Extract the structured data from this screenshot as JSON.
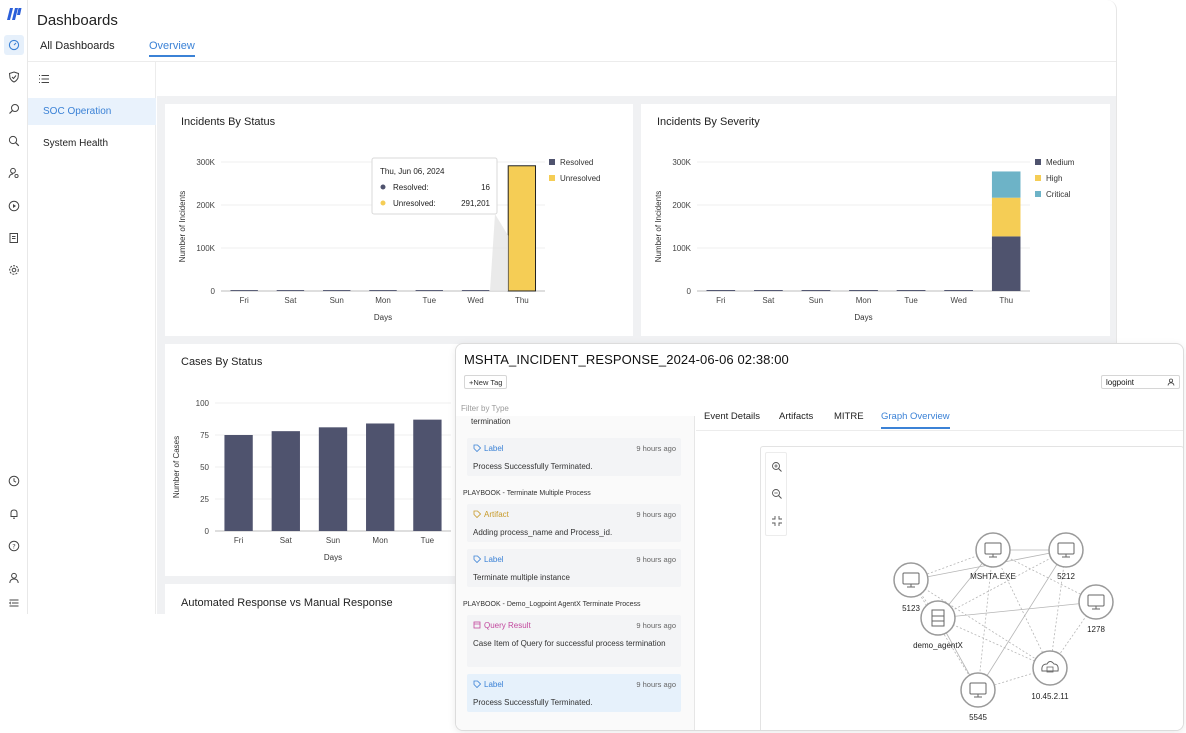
{
  "app": {
    "title": "Dashboards",
    "tabs": [
      "All Dashboards",
      "Overview"
    ]
  },
  "rail_icons": [
    "logo-icon",
    "dashboard-icon",
    "shield-check-icon",
    "investigate-icon",
    "search-icon",
    "user-search-icon",
    "play-icon",
    "report-icon",
    "gear-icon",
    "clock-icon",
    "bell-icon",
    "help-icon",
    "user-icon",
    "menu-collapse-icon"
  ],
  "subnav": {
    "items": [
      "SOC Operation",
      "System Health"
    ]
  },
  "colors": {
    "accent": "#3b82d6",
    "resolved": "#4f536e",
    "unresolved": "#f5cd55",
    "medium": "#4f536e",
    "high": "#f5cd55",
    "critical": "#6db3c7"
  },
  "chart_data": [
    {
      "type": "bar",
      "title": "Incidents By Status",
      "categories": [
        "Fri",
        "Sat",
        "Sun",
        "Mon",
        "Tue",
        "Wed",
        "Thu"
      ],
      "series": [
        {
          "name": "Resolved",
          "values": [
            0,
            0,
            0,
            0,
            0,
            0,
            16
          ]
        },
        {
          "name": "Unresolved",
          "values": [
            0,
            0,
            0,
            0,
            0,
            0,
            291201
          ]
        }
      ],
      "stacked": true,
      "xlabel": "Days",
      "ylabel": "Number of Incidents",
      "ylim": [
        0,
        300000
      ],
      "yticks": [
        "0",
        "100K",
        "200K",
        "300K"
      ],
      "legend": "top-right",
      "tooltip": {
        "date": "Thu, Jun 06, 2024",
        "rows": [
          {
            "label": "Resolved:",
            "value": "16"
          },
          {
            "label": "Unresolved:",
            "value": "291,201"
          }
        ]
      }
    },
    {
      "type": "bar",
      "title": "Incidents By Severity",
      "categories": [
        "Fri",
        "Sat",
        "Sun",
        "Mon",
        "Tue",
        "Wed",
        "Thu"
      ],
      "series": [
        {
          "name": "Medium",
          "values": [
            0,
            0,
            0,
            0,
            0,
            0,
            127000
          ]
        },
        {
          "name": "High",
          "values": [
            0,
            0,
            0,
            0,
            0,
            0,
            90000
          ]
        },
        {
          "name": "Critical",
          "values": [
            0,
            0,
            0,
            0,
            0,
            0,
            61000
          ]
        }
      ],
      "stacked": true,
      "xlabel": "Days",
      "ylabel": "Number of Incidents",
      "ylim": [
        0,
        300000
      ],
      "yticks": [
        "0",
        "100K",
        "200K",
        "300K"
      ],
      "legend": "top-right"
    },
    {
      "type": "bar",
      "title": "Cases By Status",
      "categories": [
        "Fri",
        "Sat",
        "Sun",
        "Mon",
        "Tue"
      ],
      "values": [
        75,
        78,
        81,
        84,
        87
      ],
      "xlabel": "Days",
      "ylabel": "Number of Cases",
      "ylim": [
        0,
        100
      ],
      "yticks": [
        "0",
        "25",
        "50",
        "75",
        "100"
      ]
    }
  ],
  "cards": {
    "automated_title": "Automated Response vs Manual Response"
  },
  "panel": {
    "title": "MSHTA_INCIDENT_RESPONSE_2024-06-06 02:38:00",
    "new_tag": "+New Tag",
    "user": "logpoint",
    "filter_placeholder": "Filter by Type",
    "partial_text": "termination",
    "events": [
      {
        "type": "Label",
        "time": "9 hours ago",
        "text": "Process Successfully Terminated."
      },
      {
        "type": "Artifact",
        "time": "9 hours ago",
        "text": "Adding process_name and Process_id."
      },
      {
        "type": "Label",
        "time": "9 hours ago",
        "text": "Terminate multiple instance"
      },
      {
        "type": "Query Result",
        "time": "9 hours ago",
        "text": "Case Item of Query for successful process termination"
      },
      {
        "type": "Label",
        "time": "9 hours ago",
        "text": "Process Successfully Terminated."
      }
    ],
    "playbooks": [
      "PLAYBOOK - Terminate Multiple Process",
      "PLAYBOOK - Demo_Logpoint AgentX Terminate Process"
    ],
    "tabs": [
      "Event Details",
      "Artifacts",
      "MITRE",
      "Graph Overview"
    ],
    "graph": {
      "nodes": [
        "MSHTA.EXE",
        "5212",
        "5123",
        "1278",
        "demo_agentX",
        "10.45.2.11",
        "5545"
      ]
    }
  }
}
